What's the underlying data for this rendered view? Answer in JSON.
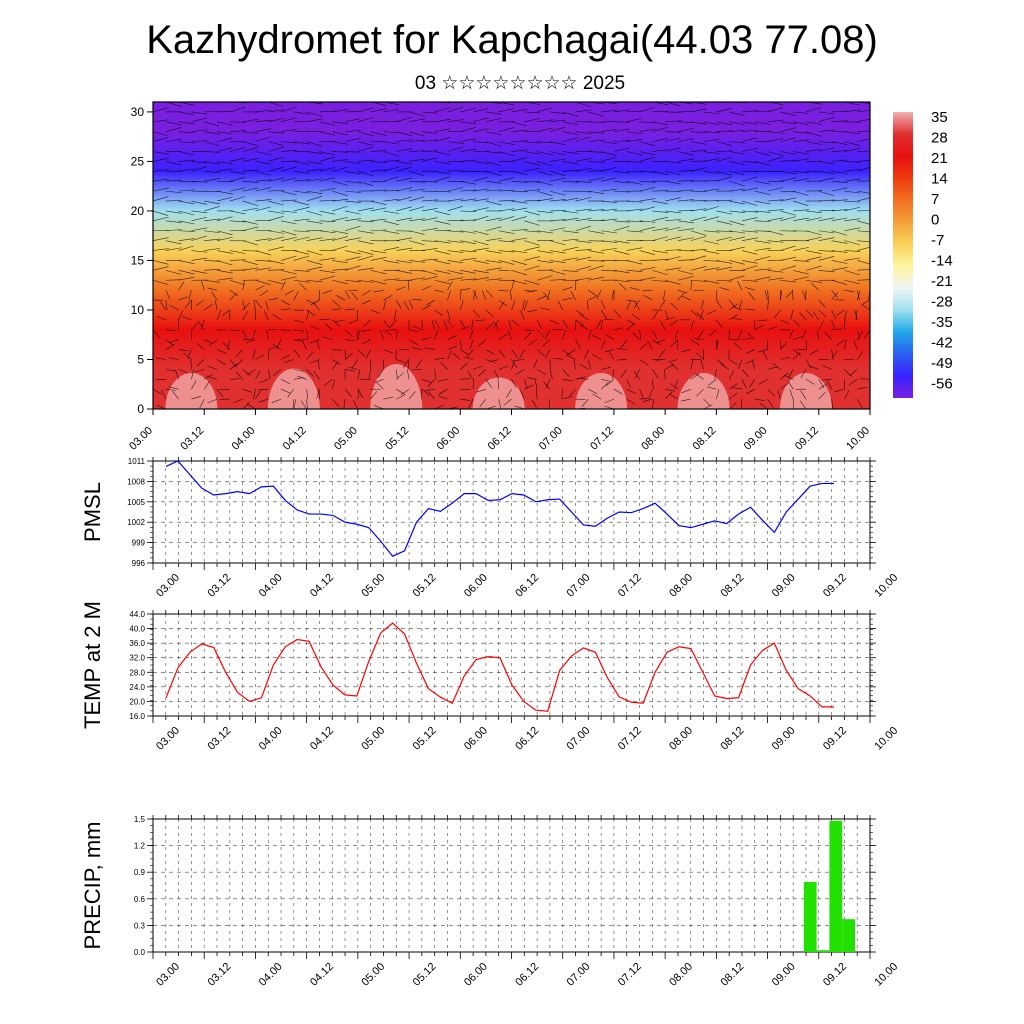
{
  "header": {
    "title": "Kazhydromet for Kapchagai(44.03 77.08)",
    "subtitle": "03 ☆☆☆☆☆☆☆☆ 2025"
  },
  "chart_data": [
    {
      "type": "heatmap",
      "name": "vertical-profile",
      "x_ticks": [
        "03.00",
        "03.12",
        "04.00",
        "04.12",
        "05.00",
        "05.12",
        "06.00",
        "06.12",
        "07.00",
        "07.12",
        "08.00",
        "08.12",
        "09.00",
        "09.12",
        "10.00"
      ],
      "y_ticks": [
        0,
        5,
        10,
        15,
        20,
        25,
        30
      ],
      "ylim": [
        0,
        31
      ],
      "colorbar_labels": [
        "35",
        "28",
        "21",
        "14",
        "7",
        "0",
        "-7",
        "-14",
        "-21",
        "-28",
        "-35",
        "-42",
        "-49",
        "-56"
      ],
      "colorbar_colors": [
        "#7a1fe0",
        "#3a22ff",
        "#2a60f0",
        "#21a8e8",
        "#9fe0f0",
        "#f0f4f4",
        "#fff5a0",
        "#f8d25a",
        "#f4a03c",
        "#f07020",
        "#ee3a10",
        "#e81010",
        "#e03030",
        "#f0b0b0"
      ],
      "profile_temperature_c": {
        "heights": [
          0,
          4,
          8,
          12,
          16,
          20,
          24,
          28,
          31
        ],
        "values": [
          33,
          28,
          22,
          10,
          -8,
          -30,
          -52,
          -60,
          -60
        ]
      }
    },
    {
      "type": "line",
      "name": "pmsl",
      "ylabel": "PMSL",
      "x_ticks": [
        "03.00",
        "03.12",
        "04.00",
        "04.12",
        "05.00",
        "05.12",
        "06.00",
        "06.12",
        "07.00",
        "07.12",
        "08.00",
        "08.12",
        "09.00",
        "09.12",
        "10.00"
      ],
      "y_ticks": [
        "996",
        "999",
        "1002",
        "1005",
        "1008",
        "1011"
      ],
      "ylim": [
        996,
        1011
      ],
      "color": "#0000ff",
      "values": [
        1010.2,
        1011.0,
        1009.0,
        1007.0,
        1006.0,
        1006.2,
        1006.5,
        1006.2,
        1007.2,
        1007.3,
        1005.2,
        1003.8,
        1003.2,
        1003.2,
        1003.0,
        1002.0,
        1001.7,
        1001.2,
        999.2,
        997.0,
        997.8,
        1002.0,
        1004.0,
        1003.6,
        1004.8,
        1006.2,
        1006.2,
        1005.2,
        1005.3,
        1006.2,
        1006.0,
        1005.0,
        1005.3,
        1005.4,
        1003.5,
        1001.6,
        1001.4,
        1002.6,
        1003.5,
        1003.4,
        1004.0,
        1004.8,
        1003.2,
        1001.5,
        1001.2,
        1001.7,
        1002.2,
        1001.8,
        1003.2,
        1004.2,
        1002.3,
        1000.5,
        1003.5,
        1005.4,
        1007.3,
        1007.7,
        1007.7
      ]
    },
    {
      "type": "line",
      "name": "temp2m",
      "ylabel": "TEMP at 2 M",
      "x_ticks": [
        "03.00",
        "03.12",
        "04.00",
        "04.12",
        "05.00",
        "05.12",
        "06.00",
        "06.12",
        "07.00",
        "07.12",
        "08.00",
        "08.12",
        "09.00",
        "09.12",
        "10.00"
      ],
      "y_ticks": [
        "16.0",
        "20.0",
        "24.0",
        "28.0",
        "32.0",
        "36.0",
        "40.0",
        "44.0"
      ],
      "ylim": [
        16,
        44
      ],
      "color": "#ff0000",
      "values": [
        21.0,
        29.2,
        33.5,
        35.8,
        34.8,
        28.0,
        22.5,
        20.0,
        21.0,
        30.0,
        35.0,
        37.0,
        36.5,
        29.5,
        24.5,
        21.8,
        21.5,
        31.0,
        38.8,
        41.5,
        38.5,
        30.5,
        23.5,
        21.2,
        19.5,
        27.0,
        31.5,
        32.3,
        32.0,
        24.5,
        20.0,
        17.6,
        17.3,
        28.5,
        32.5,
        34.7,
        33.5,
        26.5,
        21.2,
        19.8,
        19.5,
        28.0,
        33.5,
        35.0,
        34.5,
        28.0,
        21.5,
        20.8,
        21.0,
        30.0,
        34.0,
        36.0,
        28.5,
        23.5,
        21.5,
        18.5,
        18.5
      ]
    },
    {
      "type": "bar",
      "name": "precip",
      "ylabel": "PRECIP, mm",
      "x_ticks": [
        "03.00",
        "03.12",
        "04.00",
        "04.12",
        "05.00",
        "05.12",
        "06.00",
        "06.12",
        "07.00",
        "07.12",
        "08.00",
        "08.12",
        "09.00",
        "09.12",
        "10.00"
      ],
      "y_ticks": [
        "0.0",
        "0.3",
        "0.6",
        "0.9",
        "1.2",
        "1.5"
      ],
      "ylim": [
        0,
        1.5
      ],
      "color": "#22e000",
      "bars": [
        {
          "x_hour": 156,
          "width_hours": 3,
          "value": 0.79
        },
        {
          "x_hour": 159,
          "width_hours": 3,
          "value": 0.02
        },
        {
          "x_hour": 162,
          "width_hours": 3,
          "value": 1.48
        },
        {
          "x_hour": 165,
          "width_hours": 3,
          "value": 0.37
        }
      ]
    }
  ]
}
